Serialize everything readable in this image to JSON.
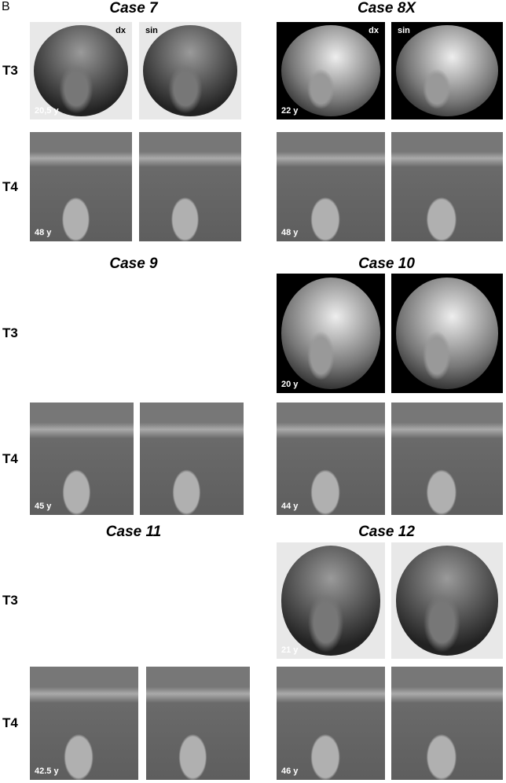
{
  "panel_label": "B",
  "sections": [
    {
      "row_labels": [
        "T3",
        "T4"
      ],
      "cases": [
        {
          "title": "Case 7",
          "images": [
            {
              "row": "T3",
              "age": "20,5 y",
              "left_label": "dx",
              "right_label": "sin"
            },
            {
              "row": "T4",
              "age": "48 y"
            }
          ]
        },
        {
          "title": "Case 8X",
          "images": [
            {
              "row": "T3",
              "age": "22 y",
              "left_label": "dx",
              "right_label": "sin"
            },
            {
              "row": "T4",
              "age": "48 y"
            }
          ]
        }
      ]
    },
    {
      "row_labels": [
        "T3",
        "T4"
      ],
      "cases": [
        {
          "title": "Case 9",
          "images": [
            {
              "row": "T4",
              "age": "45 y"
            }
          ]
        },
        {
          "title": "Case 10",
          "images": [
            {
              "row": "T3",
              "age": "20 y"
            },
            {
              "row": "T4",
              "age": "44 y"
            }
          ]
        }
      ]
    },
    {
      "row_labels": [
        "T3",
        "T4"
      ],
      "cases": [
        {
          "title": "Case 11",
          "images": [
            {
              "row": "T4",
              "age": "42.5 y"
            }
          ]
        },
        {
          "title": "Case 12",
          "images": [
            {
              "row": "T3",
              "age": "21 y"
            },
            {
              "row": "T4",
              "age": "46 y"
            }
          ]
        }
      ]
    }
  ]
}
